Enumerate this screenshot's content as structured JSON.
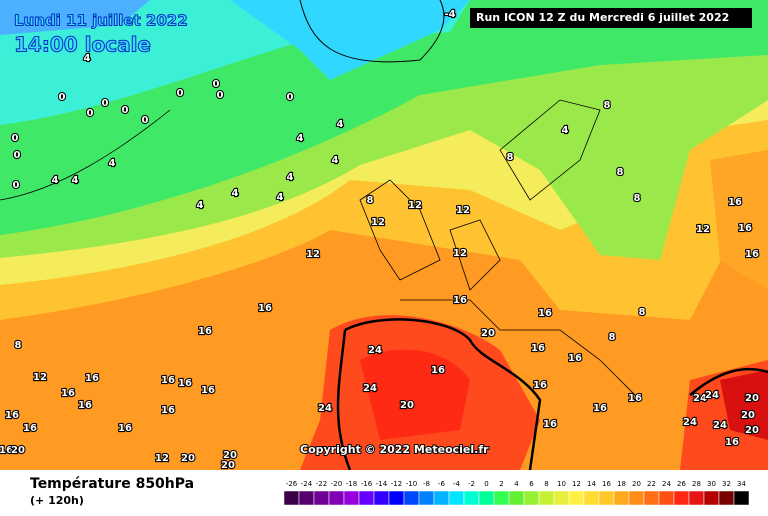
{
  "header": {
    "date": "Lundi 11 juillet 2022",
    "time": "14:00 locale",
    "run": "Run ICON 12 Z du Mercredi 6 juillet 2022"
  },
  "map": {
    "copyright": "Copyright © 2022 Meteociel.fr",
    "labels": [
      -4,
      4,
      0,
      0,
      0,
      0,
      0,
      0,
      0,
      0,
      0,
      0,
      0,
      0,
      4,
      4,
      4,
      4,
      4,
      4,
      4,
      4,
      4,
      4,
      8,
      8,
      4,
      8,
      8,
      8,
      16,
      16,
      16,
      12,
      12,
      12,
      12,
      12,
      12,
      16,
      16,
      16,
      20,
      16,
      16,
      16,
      8,
      8,
      16,
      16,
      16,
      16,
      8,
      12,
      16,
      16,
      16,
      16,
      16,
      16,
      16,
      16,
      16,
      16,
      16,
      20,
      12,
      20,
      20,
      20,
      24,
      24,
      16,
      20,
      24,
      24,
      24,
      24,
      20,
      20,
      24,
      20,
      16
    ]
  },
  "footer": {
    "title": "Température 850hPa",
    "subtitle": "(+ 120h)"
  },
  "scale": {
    "ticks": [
      -26,
      -24,
      -22,
      -20,
      -18,
      -16,
      -14,
      -12,
      -10,
      -8,
      -6,
      -4,
      -2,
      0,
      2,
      4,
      6,
      8,
      10,
      12,
      14,
      16,
      18,
      20,
      22,
      24,
      26,
      28,
      30,
      32,
      34
    ],
    "colors": [
      "#3c0046",
      "#55006e",
      "#6e0096",
      "#8200b4",
      "#9600dc",
      "#6400ff",
      "#3200ff",
      "#0000ff",
      "#0046ff",
      "#0082ff",
      "#00b4ff",
      "#00e6ff",
      "#00ffd2",
      "#00ff96",
      "#32ff50",
      "#64f032",
      "#96f032",
      "#c8f032",
      "#e6f03c",
      "#fff046",
      "#ffdc32",
      "#ffc828",
      "#ffaa1e",
      "#ff8c14",
      "#ff6e14",
      "#ff5014",
      "#ff2814",
      "#e61414",
      "#b40000",
      "#780000",
      "#000000"
    ]
  }
}
